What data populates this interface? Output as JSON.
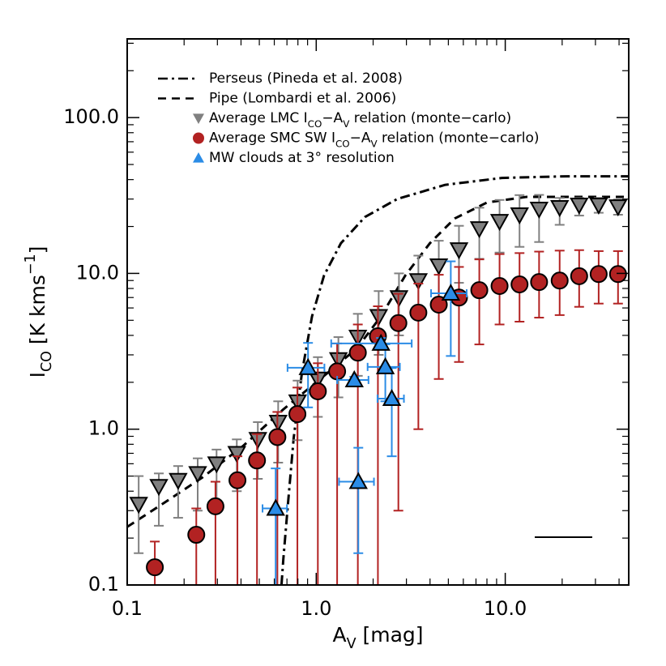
{
  "chart_data": {
    "type": "scatter",
    "xscale": "log",
    "yscale": "log",
    "xlim": [
      0.1,
      45
    ],
    "ylim": [
      0.1,
      320
    ],
    "xticks": [
      0.1,
      {
        "value": 1,
        "label": "1.0"
      },
      {
        "value": 10,
        "label": "10.0"
      }
    ],
    "yticks": [
      0.1,
      {
        "value": 1,
        "label": "1.0"
      },
      {
        "value": 10,
        "label": "10.0"
      },
      {
        "value": 100,
        "label": "100.0"
      }
    ],
    "xminorticks": [
      0.2,
      0.3,
      0.4,
      0.5,
      0.6,
      0.7,
      0.8,
      0.9,
      2,
      3,
      4,
      5,
      6,
      7,
      8,
      9,
      20,
      30,
      40
    ],
    "yminorticks": [
      0.2,
      0.3,
      0.4,
      0.5,
      0.6,
      0.7,
      0.8,
      0.9,
      2,
      3,
      4,
      5,
      6,
      7,
      8,
      9,
      20,
      30,
      40,
      50,
      60,
      70,
      80,
      90,
      200,
      300
    ],
    "xlabel": [
      {
        "text": "A"
      },
      {
        "text": "V",
        "sub": true
      },
      {
        "text": " [mag]"
      }
    ],
    "ylabel": [
      {
        "text": "I"
      },
      {
        "text": "CO",
        "sub": true
      },
      {
        "text": " [K kms"
      },
      {
        "text": "−1",
        "sup": true
      },
      {
        "text": "]"
      }
    ],
    "legend": "top-left",
    "series": [
      {
        "name": [
          {
            "text": "Perseus (Pineda et al. 2008)"
          }
        ],
        "kind": "line",
        "dash": "dashdot",
        "color": "#000000",
        "x": [
          0.655,
          0.67,
          0.71,
          0.76,
          0.84,
          0.95,
          1.1,
          1.35,
          1.81,
          2.68,
          4.8,
          9.6,
          21.3,
          45
        ],
        "values": [
          0.1,
          0.147,
          0.34,
          0.88,
          2.3,
          5.3,
          9.7,
          15.6,
          23,
          30,
          37,
          41,
          42,
          42
        ]
      },
      {
        "name": [
          {
            "text": "Pipe (Lombardi et al. 2006)"
          }
        ],
        "kind": "line",
        "dash": "dashed",
        "color": "#000000",
        "x": [
          0.1,
          0.153,
          0.25,
          0.41,
          0.67,
          1.1,
          1.64,
          2.2,
          2.96,
          3.99,
          5.4,
          8.0,
          13.0,
          45
        ],
        "values": [
          0.236,
          0.33,
          0.49,
          0.78,
          1.34,
          2.2,
          3.3,
          5.3,
          9.7,
          15.6,
          22.5,
          28.5,
          31,
          31
        ]
      },
      {
        "name": [
          {
            "text": "Average LMC I"
          },
          {
            "text": "CO",
            "sub": true
          },
          {
            "text": "−A"
          },
          {
            "text": "V",
            "sub": true
          },
          {
            "text": " relation (monte−carlo)"
          }
        ],
        "kind": "marker",
        "marker": "triangle-down",
        "color": "#808080",
        "errcolor": "#808080",
        "x": [
          0.115,
          0.147,
          0.186,
          0.236,
          0.297,
          0.38,
          0.491,
          0.629,
          0.797,
          1.02,
          1.31,
          1.66,
          2.14,
          2.74,
          3.47,
          4.45,
          5.69,
          7.29,
          9.33,
          11.9,
          15.1,
          19.4,
          24.6,
          31.2,
          39.5
        ],
        "values": [
          0.33,
          0.43,
          0.47,
          0.52,
          0.6,
          0.7,
          0.86,
          1.11,
          1.5,
          2.1,
          2.8,
          3.9,
          5.3,
          7.0,
          9.0,
          11.2,
          14.2,
          19.4,
          21.6,
          23.8,
          25.9,
          26.5,
          27.5,
          27.5,
          26.8
        ],
        "yerr_minus": [
          0.17,
          0.19,
          0.2,
          0.22,
          0.25,
          0.3,
          0.38,
          0.5,
          0.65,
          0.9,
          1.2,
          1.7,
          2.3,
          3,
          3.8,
          4.5,
          5.5,
          7,
          8,
          9,
          10,
          6,
          4,
          3,
          3
        ],
        "yerr_plus": [
          0.17,
          0.09,
          0.11,
          0.13,
          0.14,
          0.16,
          0.25,
          0.4,
          0.55,
          0.8,
          1.1,
          1.6,
          2.4,
          3,
          4,
          5,
          6,
          7,
          8,
          8,
          6,
          4,
          3,
          3,
          3
        ]
      },
      {
        "name": [
          {
            "text": "Average SMC SW I"
          },
          {
            "text": "CO",
            "sub": true
          },
          {
            "text": "−A"
          },
          {
            "text": "V",
            "sub": true
          },
          {
            "text": " relation (monte−carlo)"
          }
        ],
        "kind": "marker",
        "marker": "circle",
        "color": "#b22222",
        "errcolor": "#b22222",
        "x": [
          0.14,
          0.232,
          0.293,
          0.383,
          0.486,
          0.623,
          0.795,
          1.02,
          1.29,
          1.66,
          2.12,
          2.72,
          3.47,
          4.45,
          5.69,
          7.29,
          9.33,
          11.9,
          15.1,
          19.4,
          24.6,
          31.2,
          39.5
        ],
        "values": [
          0.13,
          0.21,
          0.32,
          0.47,
          0.63,
          0.89,
          1.25,
          1.75,
          2.35,
          3.1,
          3.95,
          4.8,
          5.6,
          6.3,
          7.0,
          7.8,
          8.3,
          8.5,
          8.8,
          9.0,
          9.6,
          9.9,
          9.9
        ],
        "yerr_minus": [
          0.13,
          0.21,
          0.32,
          0.47,
          0.63,
          0.89,
          1.25,
          1.75,
          2.35,
          3.1,
          3.9,
          4.5,
          4.6,
          4.2,
          4.3,
          4.3,
          3.6,
          3.6,
          3.6,
          3.6,
          3.5,
          3.5,
          3.5
        ],
        "yerr_plus": [
          0.06,
          0.1,
          0.14,
          0.2,
          0.3,
          0.4,
          0.6,
          0.9,
          1.2,
          1.6,
          2.2,
          2.6,
          3,
          3.5,
          4,
          4.5,
          5,
          5,
          5,
          5,
          4.5,
          4,
          4
        ]
      },
      {
        "name": [
          {
            "text": "MW clouds at 3° resolution"
          }
        ],
        "kind": "marker",
        "marker": "triangle-up",
        "color": "#2b8ce6",
        "errcolor": "#2b8ce6",
        "x": [
          0.61,
          0.905,
          1.67,
          1.59,
          2.2,
          2.32,
          2.51,
          5.15
        ],
        "values": [
          0.31,
          2.48,
          0.46,
          2.07,
          3.55,
          2.51,
          1.57,
          7.45
        ],
        "xerr": [
          0.09,
          0.2,
          0.35,
          0.3,
          1.0,
          0.45,
          0.4,
          1.1
        ],
        "yerr_minus": [
          0.25,
          1.1,
          0.3,
          0.1,
          0.3,
          1.0,
          0.9,
          4.5
        ],
        "yerr_plus": [
          0.25,
          1.1,
          0.3,
          0.1,
          0.3,
          1.0,
          0.9,
          4.5
        ]
      }
    ]
  }
}
